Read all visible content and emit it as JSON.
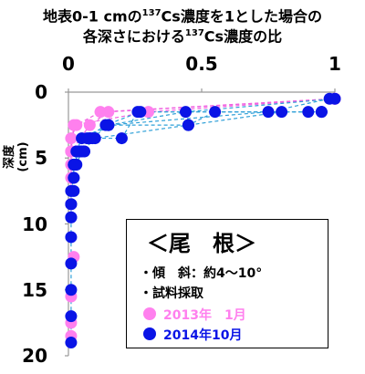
{
  "title": {
    "line1_pre": "地表0-1 cmの",
    "line1_sup": "137",
    "line1_post": "Cs濃度を1とした場合の",
    "line2_pre": "各深さにおける",
    "line2_sup": "137",
    "line2_post": "Cs濃度の比"
  },
  "legend": {
    "heading": "＜尾　根＞",
    "slope": "・傾　斜：約4～10°",
    "sampling": "・試料採取",
    "items": [
      "2013年　1月",
      "2014年10月"
    ]
  },
  "colors": {
    "series_2013": "#ff80ee",
    "series_2014": "#0a14e6",
    "line_2013": "#f060e0",
    "line_2014": "#2fa0d8"
  },
  "chart_data": {
    "type": "scatter",
    "xlabel": "",
    "ylabel": "深度 (cm)",
    "xlim": [
      0,
      1
    ],
    "ylim": [
      20,
      0
    ],
    "x_ticks": [
      "0",
      "0.5",
      "1"
    ],
    "y_ticks": [
      "0",
      "5",
      "10",
      "15",
      "20"
    ],
    "legend_position": "lower-right",
    "series": [
      {
        "name": "2013年　1月",
        "profiles": [
          {
            "x": [
              1.0,
              0.3,
              0.02,
              0.01
            ],
            "y": [
              0.5,
              1.5,
              2.5,
              4.5
            ]
          },
          {
            "x": [
              1.0,
              0.15,
              0.08,
              0.01
            ],
            "y": [
              0.5,
              1.5,
              2.5,
              4.5
            ]
          },
          {
            "x": [
              1.0,
              0.12,
              0.03,
              0.01,
              0.01,
              0.01,
              0.01,
              0.01
            ],
            "y": [
              0.5,
              1.5,
              2.5,
              3.5,
              4.5,
              5.5,
              6.5,
              8.5
            ]
          }
        ],
        "extra_points": [
          {
            "x": 0.02,
            "y": 12.5
          },
          {
            "x": 0.01,
            "y": 15.5
          },
          {
            "x": 0.01,
            "y": 17.5
          },
          {
            "x": 0.01,
            "y": 18.5
          }
        ]
      },
      {
        "name": "2014年10月",
        "profiles": [
          {
            "x": [
              1.0,
              0.44,
              0.15,
              0.05,
              0.03,
              0.02,
              0.02,
              0.02,
              0.01,
              0.01,
              0.01,
              0.01,
              0.01,
              0.01,
              0.01
            ],
            "y": [
              0.5,
              1.5,
              2.5,
              3.5,
              4.5,
              5.5,
              6.5,
              7.5,
              8.5,
              9.5,
              11,
              13,
              15,
              17,
              19
            ]
          },
          {
            "x": [
              0.98,
              0.75,
              0.15,
              0.08,
              0.04,
              0.02,
              0.02,
              0.01,
              0.01,
              0.01
            ],
            "y": [
              0.5,
              1.5,
              2.5,
              3.5,
              4.5,
              5.5,
              6.5,
              7.5,
              8.5,
              9.5
            ]
          },
          {
            "x": [
              0.95,
              0.55,
              0.45,
              0.1,
              0.05,
              0.03
            ],
            "y": [
              1.5,
              1.5,
              2.5,
              3.5,
              4.5,
              5.5
            ]
          },
          {
            "x": [
              0.9,
              0.26,
              0.2,
              0.08,
              0.04,
              0.02
            ],
            "y": [
              1.5,
              1.5,
              3.5,
              3.5,
              4.5,
              5.5
            ]
          },
          {
            "x": [
              0.8,
              0.45,
              0.15,
              0.09,
              0.06
            ],
            "y": [
              1.5,
              2.5,
              2.5,
              3.5,
              4.5
            ]
          },
          {
            "x": [
              0.95,
              0.27,
              0.14,
              0.07
            ],
            "y": [
              1.5,
              1.5,
              2.5,
              3.5
            ]
          }
        ]
      }
    ]
  }
}
